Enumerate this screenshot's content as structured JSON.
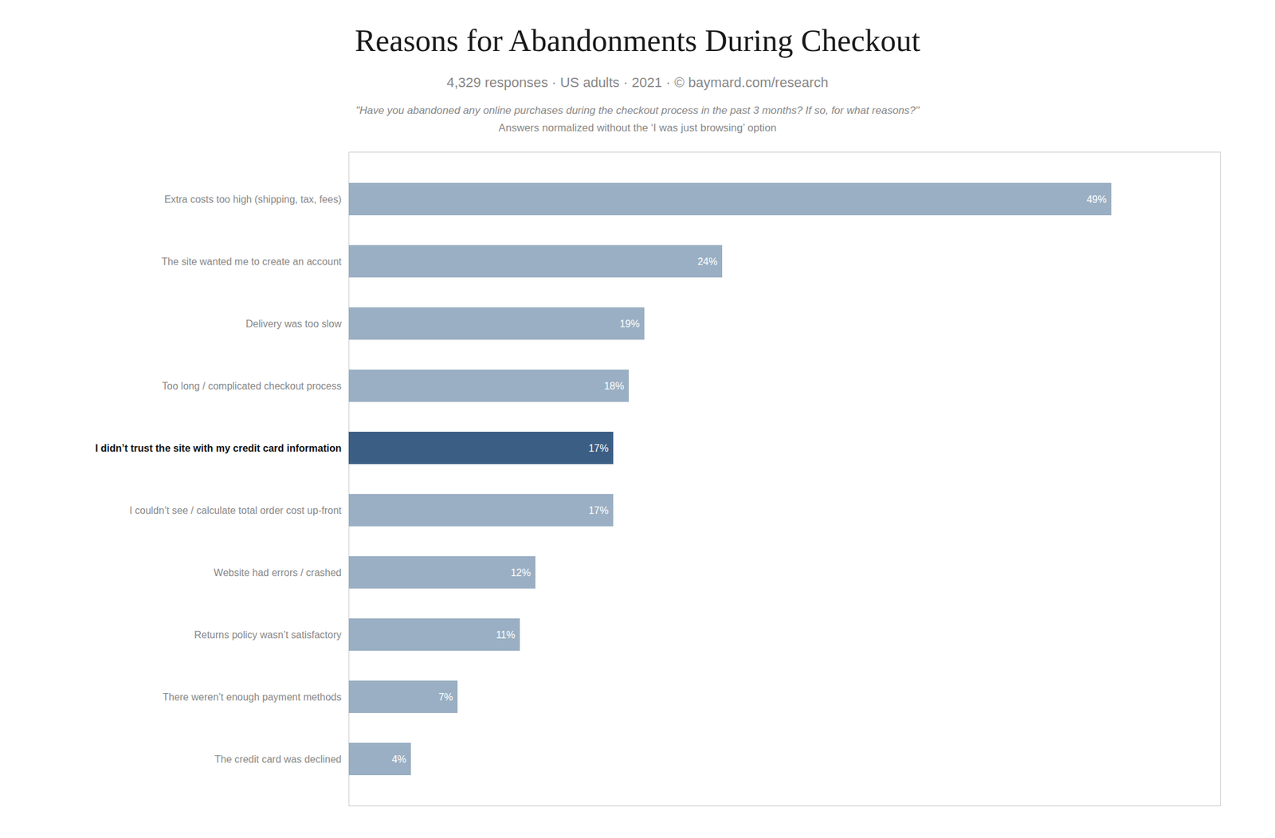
{
  "chart_data": {
    "type": "bar",
    "orientation": "horizontal",
    "title": "Reasons for Abandonments During Checkout",
    "subtitle": "4,329 responses  ·  US adults  ·  2021  ·  ©  baymard.com/research",
    "annotations": [
      "\"Have you abandoned any online purchases during the checkout process in the past 3 months? If so, for what reasons?\"",
      "Answers normalized without the ‘I was just browsing’ option"
    ],
    "categories": [
      "Extra costs too high (shipping, tax, fees)",
      "The site wanted me to create an account",
      "Delivery was too slow",
      "Too long / complicated checkout process",
      "I didn’t trust the site with my credit card information",
      "I couldn’t see / calculate total order cost up-front",
      "Website had errors / crashed",
      "Returns policy wasn’t satisfactory",
      "There weren’t enough payment methods",
      "The credit card was declined"
    ],
    "values": [
      49,
      24,
      19,
      18,
      17,
      17,
      12,
      11,
      7,
      4
    ],
    "value_labels": [
      "49%",
      "24%",
      "19%",
      "18%",
      "17%",
      "17%",
      "12%",
      "11%",
      "7%",
      "4%"
    ],
    "colors": [
      "#9aafc3",
      "#9aafc3",
      "#9aafc3",
      "#9aafc3",
      "#3b5e84",
      "#9aafc3",
      "#9aafc3",
      "#9aafc3",
      "#9aafc3",
      "#9aafc3"
    ],
    "xlim": [
      0,
      56
    ],
    "data_labels": true,
    "tick_labels": "y",
    "grid": false
  }
}
